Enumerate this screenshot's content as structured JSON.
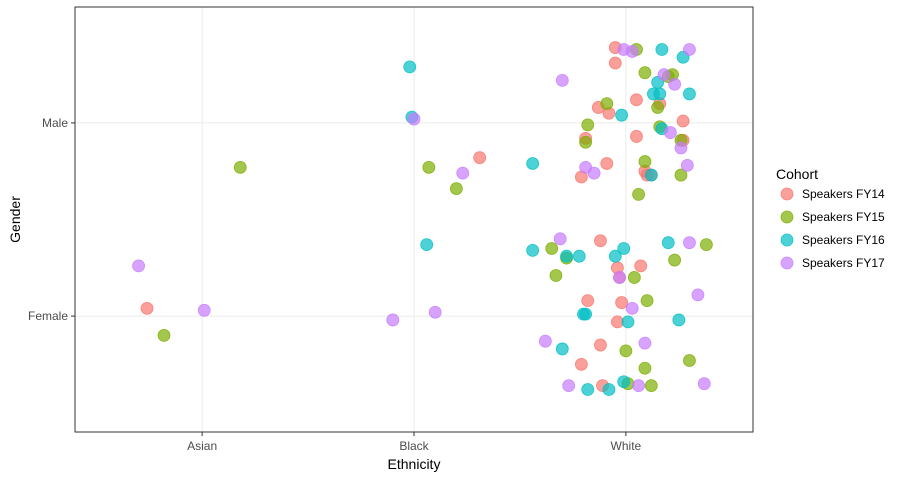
{
  "chart_data": {
    "type": "scatter",
    "title": "",
    "xlabel": "Ethnicity",
    "ylabel": "Gender",
    "x_categories": [
      "Asian",
      "Black",
      "White"
    ],
    "y_categories": [
      "Female",
      "Male"
    ],
    "jitter": true,
    "grid": true,
    "legend": {
      "title": "Cohort",
      "placement": "right"
    },
    "series": [
      {
        "name": "Speakers FY14",
        "color": "#F8766D",
        "points": [
          {
            "x": 0.74,
            "y": 0.04
          },
          {
            "x": 2.31,
            "y": 0.82
          },
          {
            "x": 2.79,
            "y": -0.25
          },
          {
            "x": 2.79,
            "y": 0.72
          },
          {
            "x": 2.81,
            "y": 0.92
          },
          {
            "x": 2.82,
            "y": 0.08
          },
          {
            "x": 2.87,
            "y": 1.08
          },
          {
            "x": 2.88,
            "y": 0.39
          },
          {
            "x": 2.91,
            "y": 0.79
          },
          {
            "x": 2.92,
            "y": 1.05
          },
          {
            "x": 2.88,
            "y": -0.15
          },
          {
            "x": 2.89,
            "y": -0.36
          },
          {
            "x": 2.95,
            "y": 1.31
          },
          {
            "x": 2.95,
            "y": 1.39
          },
          {
            "x": 2.96,
            "y": 0.25
          },
          {
            "x": 2.96,
            "y": -0.03
          },
          {
            "x": 2.97,
            "y": 0.2
          },
          {
            "x": 2.98,
            "y": 0.07
          },
          {
            "x": 3.05,
            "y": 1.12
          },
          {
            "x": 3.05,
            "y": 0.93
          },
          {
            "x": 3.07,
            "y": 0.26
          },
          {
            "x": 3.09,
            "y": 0.75
          },
          {
            "x": 3.1,
            "y": 0.73
          },
          {
            "x": 3.12,
            "y": 0.73
          },
          {
            "x": 3.16,
            "y": 1.1
          },
          {
            "x": 3.27,
            "y": 1.01
          },
          {
            "x": 3.27,
            "y": 0.91
          }
        ]
      },
      {
        "name": "Speakers FY15",
        "color": "#7CAE00",
        "points": [
          {
            "x": 0.82,
            "y": -0.1
          },
          {
            "x": 1.18,
            "y": 0.77
          },
          {
            "x": 2.07,
            "y": 0.77
          },
          {
            "x": 2.2,
            "y": 0.66
          },
          {
            "x": 2.65,
            "y": 0.35
          },
          {
            "x": 2.67,
            "y": 0.21
          },
          {
            "x": 2.72,
            "y": 0.3
          },
          {
            "x": 2.81,
            "y": 0.9
          },
          {
            "x": 2.82,
            "y": 0.99
          },
          {
            "x": 2.91,
            "y": 1.1
          },
          {
            "x": 3.0,
            "y": -0.18
          },
          {
            "x": 3.01,
            "y": -0.35
          },
          {
            "x": 3.04,
            "y": 0.2
          },
          {
            "x": 3.05,
            "y": 1.38
          },
          {
            "x": 3.06,
            "y": 0.63
          },
          {
            "x": 3.09,
            "y": 0.8
          },
          {
            "x": 3.09,
            "y": -0.27
          },
          {
            "x": 3.09,
            "y": 1.26
          },
          {
            "x": 3.1,
            "y": 0.08
          },
          {
            "x": 3.12,
            "y": -0.36
          },
          {
            "x": 3.15,
            "y": 1.08
          },
          {
            "x": 3.16,
            "y": 0.98
          },
          {
            "x": 3.2,
            "y": 1.24
          },
          {
            "x": 3.22,
            "y": 1.25
          },
          {
            "x": 3.23,
            "y": 0.29
          },
          {
            "x": 3.26,
            "y": 0.73
          },
          {
            "x": 3.26,
            "y": 0.91
          },
          {
            "x": 3.3,
            "y": -0.23
          },
          {
            "x": 3.38,
            "y": 0.37
          }
        ]
      },
      {
        "name": "Speakers FY16",
        "color": "#00BFC4",
        "points": [
          {
            "x": 1.98,
            "y": 1.29
          },
          {
            "x": 1.99,
            "y": 1.03
          },
          {
            "x": 2.06,
            "y": 0.37
          },
          {
            "x": 2.56,
            "y": 0.34
          },
          {
            "x": 2.56,
            "y": 0.79
          },
          {
            "x": 2.7,
            "y": -0.17
          },
          {
            "x": 2.72,
            "y": 0.31
          },
          {
            "x": 2.78,
            "y": 0.31
          },
          {
            "x": 2.8,
            "y": 0.01
          },
          {
            "x": 2.81,
            "y": 0.01
          },
          {
            "x": 2.82,
            "y": -0.38
          },
          {
            "x": 2.92,
            "y": -0.38
          },
          {
            "x": 2.95,
            "y": 0.31
          },
          {
            "x": 2.98,
            "y": 1.04
          },
          {
            "x": 2.99,
            "y": -0.34
          },
          {
            "x": 2.99,
            "y": 0.35
          },
          {
            "x": 3.01,
            "y": -0.03
          },
          {
            "x": 3.12,
            "y": 0.73
          },
          {
            "x": 3.13,
            "y": 1.15
          },
          {
            "x": 3.15,
            "y": 1.21
          },
          {
            "x": 3.16,
            "y": 1.15
          },
          {
            "x": 3.17,
            "y": 0.97
          },
          {
            "x": 3.17,
            "y": 1.38
          },
          {
            "x": 3.2,
            "y": 0.38
          },
          {
            "x": 3.25,
            "y": -0.02
          },
          {
            "x": 3.27,
            "y": 1.34
          },
          {
            "x": 3.3,
            "y": 1.15
          }
        ]
      },
      {
        "name": "Speakers FY17",
        "color": "#C77CFF",
        "points": [
          {
            "x": 0.7,
            "y": 0.26
          },
          {
            "x": 1.01,
            "y": 0.03
          },
          {
            "x": 1.9,
            "y": -0.02
          },
          {
            "x": 2.0,
            "y": 1.02
          },
          {
            "x": 2.1,
            "y": 0.02
          },
          {
            "x": 2.23,
            "y": 0.74
          },
          {
            "x": 2.62,
            "y": -0.13
          },
          {
            "x": 2.69,
            "y": 0.4
          },
          {
            "x": 2.7,
            "y": 1.22
          },
          {
            "x": 2.73,
            "y": -0.36
          },
          {
            "x": 2.81,
            "y": 0.77
          },
          {
            "x": 2.85,
            "y": 0.74
          },
          {
            "x": 2.97,
            "y": 0.2
          },
          {
            "x": 2.99,
            "y": 1.38
          },
          {
            "x": 3.03,
            "y": 0.04
          },
          {
            "x": 3.03,
            "y": 1.37
          },
          {
            "x": 3.06,
            "y": -0.36
          },
          {
            "x": 3.09,
            "y": -0.14
          },
          {
            "x": 3.18,
            "y": 1.25
          },
          {
            "x": 3.21,
            "y": 0.95
          },
          {
            "x": 3.23,
            "y": 1.2
          },
          {
            "x": 3.26,
            "y": 0.87
          },
          {
            "x": 3.29,
            "y": 0.78
          },
          {
            "x": 3.3,
            "y": 0.38
          },
          {
            "x": 3.3,
            "y": 1.38
          },
          {
            "x": 3.34,
            "y": 0.11
          },
          {
            "x": 3.37,
            "y": -0.35
          }
        ]
      }
    ]
  }
}
